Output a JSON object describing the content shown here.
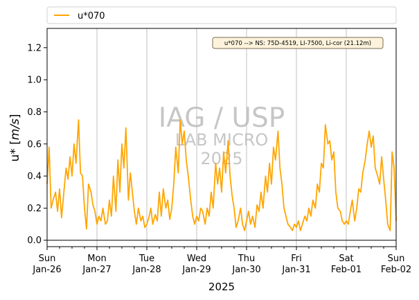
{
  "chart_data": {
    "type": "line",
    "ylabel_text": "u* [",
    "ylabel_unit": "m/s",
    "ylabel_close": "]",
    "xlabel": "2025",
    "ylim": [
      -0.04,
      1.32
    ],
    "yticks": [
      "0.0",
      "0.2",
      "0.4",
      "0.6",
      "0.8",
      "1.0",
      "1.2"
    ],
    "ytick_values": [
      0,
      0.2,
      0.4,
      0.6,
      0.8,
      1.0,
      1.2
    ],
    "xticks": [
      {
        "day": "Sun",
        "date": "Jan-26"
      },
      {
        "day": "Mon",
        "date": "Jan-27"
      },
      {
        "day": "Tue",
        "date": "Jan-28"
      },
      {
        "day": "Wed",
        "date": "Jan-29"
      },
      {
        "day": "Thu",
        "date": "Jan-30"
      },
      {
        "day": "Fri",
        "date": "Jan-31"
      },
      {
        "day": "Sat",
        "date": "Feb-01"
      },
      {
        "day": "Sun",
        "date": "Feb-02"
      }
    ],
    "grid": "vertical",
    "legend_position": "top-outside",
    "annotation": "u*070 --> NS: 75D-4519, LI-7500, Li-cor (21.12m)",
    "watermark": [
      "IAG / USP",
      "LAB MICRO",
      "2025"
    ],
    "series": [
      {
        "name": "u*070",
        "color": "#ffa500",
        "x_unit": "days since 2025-01-26 00:00",
        "x": [
          0.0,
          0.04,
          0.08,
          0.12,
          0.17,
          0.21,
          0.25,
          0.29,
          0.33,
          0.38,
          0.42,
          0.46,
          0.5,
          0.54,
          0.58,
          0.63,
          0.67,
          0.71,
          0.75,
          0.79,
          0.83,
          0.88,
          0.92,
          0.96,
          1.0,
          1.04,
          1.08,
          1.12,
          1.17,
          1.21,
          1.25,
          1.29,
          1.33,
          1.38,
          1.42,
          1.46,
          1.5,
          1.54,
          1.58,
          1.63,
          1.67,
          1.71,
          1.75,
          1.79,
          1.83,
          1.88,
          1.92,
          1.96,
          2.0,
          2.04,
          2.08,
          2.12,
          2.17,
          2.21,
          2.25,
          2.29,
          2.33,
          2.38,
          2.42,
          2.46,
          2.5,
          2.54,
          2.58,
          2.63,
          2.67,
          2.71,
          2.75,
          2.79,
          2.83,
          2.88,
          2.92,
          2.96,
          3.0,
          3.04,
          3.08,
          3.12,
          3.17,
          3.21,
          3.25,
          3.29,
          3.33,
          3.38,
          3.42,
          3.46,
          3.5,
          3.54,
          3.58,
          3.63,
          3.67,
          3.71,
          3.75,
          3.79,
          3.83,
          3.88,
          3.92,
          3.96,
          4.0,
          4.04,
          4.08,
          4.12,
          4.17,
          4.21,
          4.25,
          4.29,
          4.33,
          4.38,
          4.42,
          4.46,
          4.5,
          4.54,
          4.58,
          4.63,
          4.67,
          4.71,
          4.75,
          4.79,
          4.83,
          4.88,
          4.92,
          4.96,
          5.0,
          5.04,
          5.08,
          5.12,
          5.17,
          5.21,
          5.25,
          5.29,
          5.33,
          5.38,
          5.42,
          5.46,
          5.5,
          5.54,
          5.58,
          5.63,
          5.67,
          5.71,
          5.75,
          5.79,
          5.83,
          5.88,
          5.92,
          5.96,
          6.0,
          6.04,
          6.08,
          6.12,
          6.17,
          6.21,
          6.25,
          6.29,
          6.33,
          6.38,
          6.42,
          6.46,
          6.5,
          6.54,
          6.58,
          6.63,
          6.67,
          6.71,
          6.75,
          6.79,
          6.83,
          6.88,
          6.92,
          6.96,
          7.0
        ],
        "y": [
          0.35,
          0.58,
          0.2,
          0.25,
          0.3,
          0.18,
          0.32,
          0.14,
          0.28,
          0.45,
          0.38,
          0.52,
          0.4,
          0.6,
          0.48,
          0.75,
          0.42,
          0.4,
          0.2,
          0.07,
          0.35,
          0.3,
          0.22,
          0.18,
          0.1,
          0.15,
          0.12,
          0.2,
          0.1,
          0.12,
          0.25,
          0.15,
          0.4,
          0.18,
          0.5,
          0.3,
          0.6,
          0.45,
          0.7,
          0.25,
          0.42,
          0.3,
          0.18,
          0.1,
          0.2,
          0.12,
          0.15,
          0.08,
          0.1,
          0.14,
          0.2,
          0.1,
          0.16,
          0.12,
          0.3,
          0.15,
          0.32,
          0.2,
          0.25,
          0.13,
          0.2,
          0.35,
          0.58,
          0.42,
          0.75,
          0.6,
          0.68,
          0.5,
          0.4,
          0.25,
          0.15,
          0.1,
          0.15,
          0.12,
          0.2,
          0.18,
          0.1,
          0.2,
          0.15,
          0.3,
          0.2,
          0.48,
          0.35,
          0.45,
          0.3,
          0.55,
          0.42,
          0.62,
          0.4,
          0.28,
          0.2,
          0.08,
          0.12,
          0.2,
          0.1,
          0.06,
          0.12,
          0.18,
          0.1,
          0.15,
          0.08,
          0.22,
          0.18,
          0.3,
          0.2,
          0.4,
          0.3,
          0.48,
          0.35,
          0.58,
          0.5,
          0.68,
          0.45,
          0.35,
          0.2,
          0.15,
          0.1,
          0.08,
          0.06,
          0.1,
          0.08,
          0.12,
          0.06,
          0.1,
          0.15,
          0.12,
          0.2,
          0.15,
          0.25,
          0.2,
          0.35,
          0.3,
          0.48,
          0.45,
          0.72,
          0.6,
          0.62,
          0.5,
          0.55,
          0.3,
          0.2,
          0.18,
          0.12,
          0.1,
          0.12,
          0.1,
          0.18,
          0.25,
          0.12,
          0.2,
          0.32,
          0.3,
          0.42,
          0.5,
          0.6,
          0.68,
          0.58,
          0.65,
          0.45,
          0.4,
          0.35,
          0.52,
          0.38,
          0.25,
          0.1,
          0.06,
          0.55,
          0.45,
          0.12
        ]
      }
    ]
  }
}
